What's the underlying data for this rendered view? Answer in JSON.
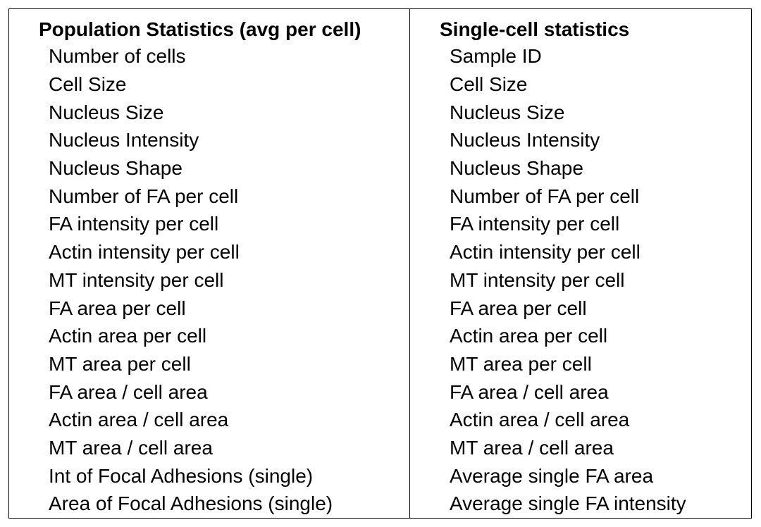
{
  "table": {
    "left": {
      "header": "Population Statistics (avg per cell)",
      "rows": [
        "Number of cells",
        "Cell Size",
        "Nucleus Size",
        "Nucleus Intensity",
        "Nucleus Shape",
        "Number of FA per cell",
        "FA intensity per cell",
        "Actin intensity per cell",
        "MT intensity per cell",
        "FA area per cell",
        "Actin area per cell",
        "MT area per cell",
        "FA area / cell area",
        "Actin area / cell area",
        "MT area / cell area",
        "Int of Focal Adhesions (single)",
        "Area of Focal Adhesions (single)"
      ]
    },
    "right": {
      "header": "Single-cell statistics",
      "rows": [
        "Sample ID",
        "Cell Size",
        "Nucleus Size",
        "Nucleus Intensity",
        "Nucleus Shape",
        "Number of FA per cell",
        "FA intensity per cell",
        "Actin intensity per cell",
        "MT intensity per cell",
        "FA area per cell",
        "Actin area per cell",
        "MT area per cell",
        "FA area / cell area",
        "Actin area / cell area",
        "MT area / cell area",
        "Average single FA area",
        "Average single FA intensity"
      ]
    }
  }
}
